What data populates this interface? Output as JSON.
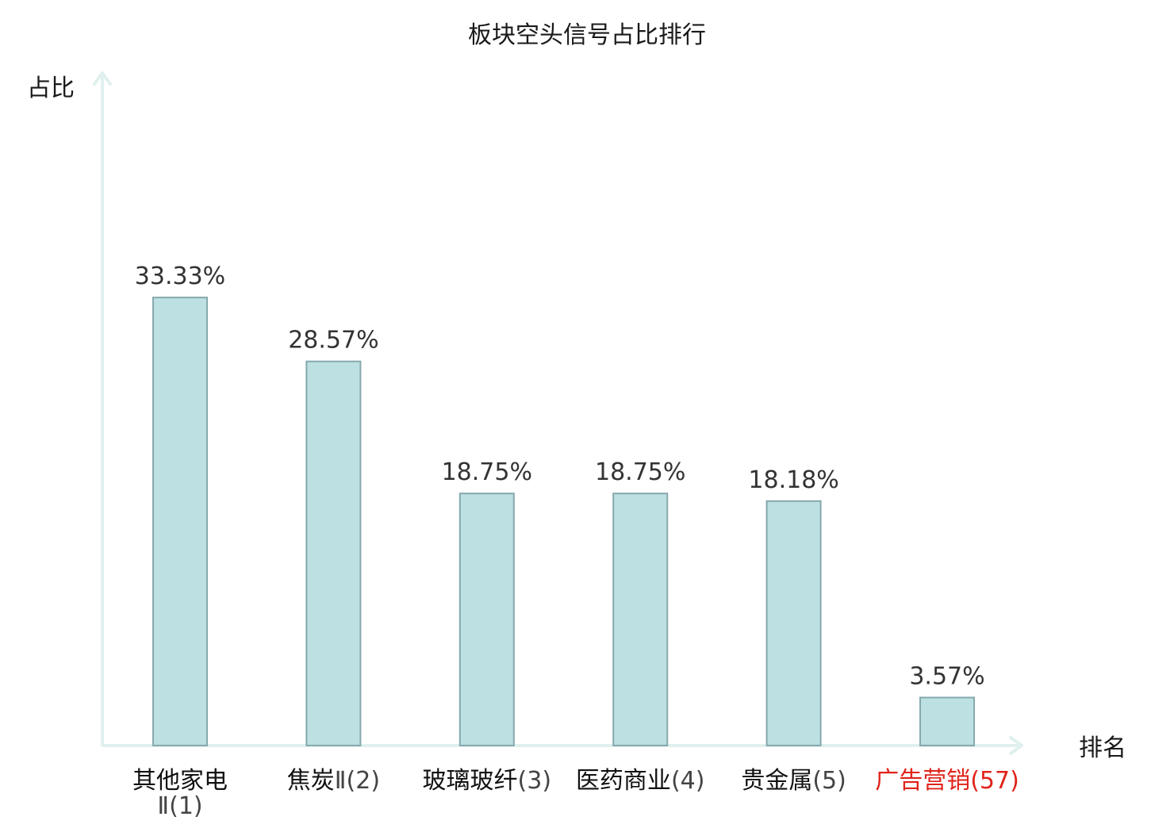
{
  "chart_data": {
    "type": "bar",
    "title": "板块空头信号占比排行",
    "ylabel": "占比",
    "xlabel": "排名",
    "ylim": [
      0,
      35
    ],
    "grid": false,
    "categories": [
      {
        "name": "其他家电",
        "rank": "Ⅱ(1)",
        "highlight": false
      },
      {
        "name": "焦炭",
        "rank": "Ⅱ(2)",
        "highlight": false
      },
      {
        "name": "玻璃玻纤",
        "rank": "(3)",
        "highlight": false
      },
      {
        "name": "医药商业",
        "rank": "(4)",
        "highlight": false
      },
      {
        "name": "贵金属",
        "rank": "(5)",
        "highlight": false
      },
      {
        "name": "广告营销",
        "rank": "(57)",
        "highlight": true
      }
    ],
    "values": [
      33.33,
      28.57,
      18.75,
      18.75,
      18.18,
      3.57
    ],
    "value_labels": [
      "33.33%",
      "28.57%",
      "18.75%",
      "18.75%",
      "18.18%",
      "3.57%"
    ],
    "colors": {
      "bar_fill": "#bde0e3",
      "bar_stroke": "#86a9ad",
      "axis": "#dff0ee",
      "highlight": "#e0231b",
      "category_name": "#111111",
      "category_rank": "#444444",
      "value_label": "#333333"
    }
  }
}
